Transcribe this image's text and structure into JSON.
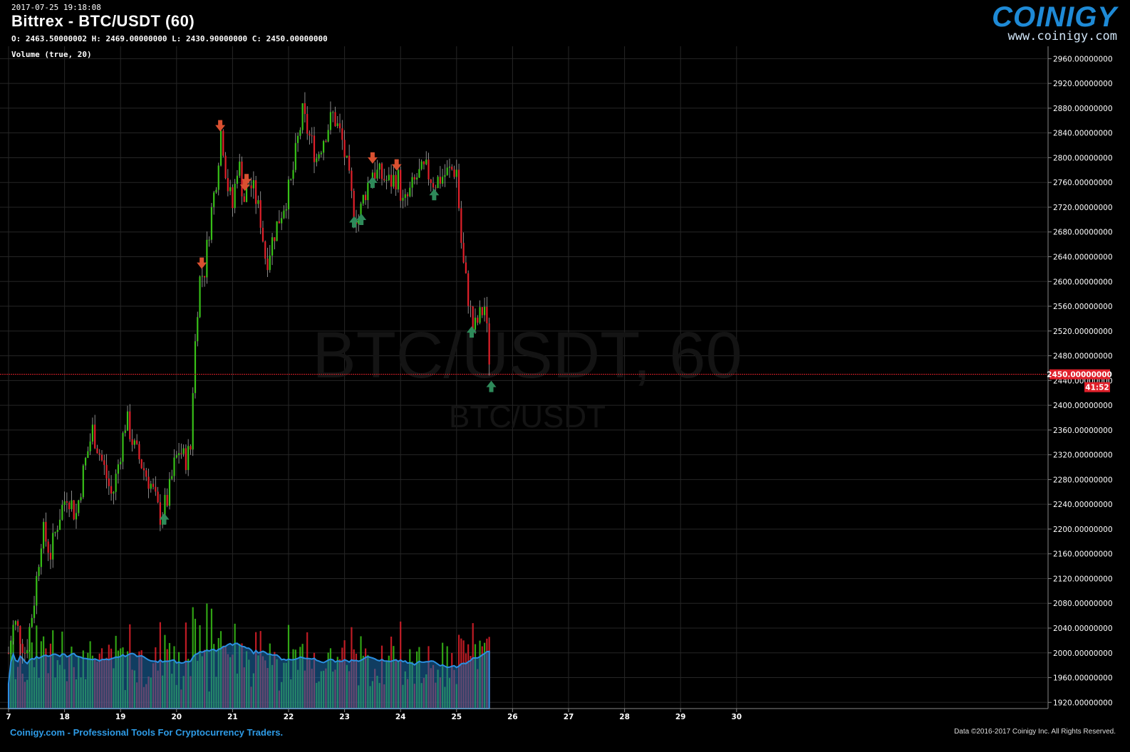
{
  "header": {
    "timestamp": "2017-07-25 19:18:08",
    "title": "Bittrex - BTC/USDT (60)",
    "ohlc": "O: 2463.50000002 H: 2469.00000000 L: 2430.90000000 C: 2450.00000000",
    "volume_label": "Volume (true, 20)"
  },
  "logo": {
    "word": "COINIGY",
    "url": "www.coinigy.com"
  },
  "watermark": {
    "main": "BTC/USDT, 60",
    "sub": "BTC/USDT"
  },
  "footer": {
    "left": "Coinigy.com - Professional Tools For Cryptocurrency Traders.",
    "right": "Data ©2016-2017 Coinigy Inc. All Rights Reserved."
  },
  "colors": {
    "up": "#38c018",
    "down": "#e0202a",
    "grid": "#262626",
    "background": "#000000",
    "price_line": "#e0202a",
    "volume_ma_fill": "#1e6fb0",
    "buy_marker": "#2e8a5a",
    "sell_marker": "#d95030"
  },
  "chart_data": {
    "type": "candlestick",
    "instrument": "BTC/USDT",
    "exchange": "Bittrex",
    "interval": "60",
    "grid": true,
    "y_axis_side": "right",
    "ylim": [
      1910,
      2980
    ],
    "y_ticks": [
      "2960.00000000",
      "2920.00000000",
      "2880.00000000",
      "2840.00000000",
      "2800.00000000",
      "2760.00000000",
      "2720.00000000",
      "2680.00000000",
      "2640.00000000",
      "2600.00000000",
      "2560.00000000",
      "2520.00000000",
      "2480.00000000",
      "2440.00000000",
      "2400.00000000",
      "2360.00000000",
      "2320.00000000",
      "2280.00000000",
      "2240.00000000",
      "2200.00000000",
      "2160.00000000",
      "2120.00000000",
      "2080.00000000",
      "2040.00000000",
      "2000.00000000",
      "1960.00000000",
      "1920.00000000"
    ],
    "x_ticks": [
      "7",
      "18",
      "19",
      "20",
      "21",
      "22",
      "23",
      "24",
      "25",
      "26",
      "27",
      "28",
      "29",
      "30"
    ],
    "last_price": "2450.00000000",
    "countdown": "41:52",
    "closes_anchor": [
      [
        17.0,
        2000
      ],
      [
        17.1,
        2050
      ],
      [
        17.2,
        2030
      ],
      [
        17.3,
        2000
      ],
      [
        17.45,
        2080
      ],
      [
        17.6,
        2200
      ],
      [
        17.75,
        2160
      ],
      [
        17.9,
        2220
      ],
      [
        18.05,
        2260
      ],
      [
        18.2,
        2220
      ],
      [
        18.35,
        2300
      ],
      [
        18.5,
        2360
      ],
      [
        18.7,
        2300
      ],
      [
        18.85,
        2250
      ],
      [
        18.95,
        2300
      ],
      [
        19.1,
        2380
      ],
      [
        19.25,
        2330
      ],
      [
        19.4,
        2300
      ],
      [
        19.55,
        2270
      ],
      [
        19.7,
        2220
      ],
      [
        19.85,
        2250
      ],
      [
        19.95,
        2300
      ],
      [
        20.05,
        2330
      ],
      [
        20.15,
        2310
      ],
      [
        20.25,
        2330
      ],
      [
        20.3,
        2450
      ],
      [
        20.4,
        2600
      ],
      [
        20.5,
        2620
      ],
      [
        20.6,
        2700
      ],
      [
        20.7,
        2760
      ],
      [
        20.8,
        2850
      ],
      [
        20.9,
        2760
      ],
      [
        21.0,
        2720
      ],
      [
        21.1,
        2800
      ],
      [
        21.2,
        2730
      ],
      [
        21.3,
        2760
      ],
      [
        21.4,
        2740
      ],
      [
        21.5,
        2700
      ],
      [
        21.6,
        2630
      ],
      [
        21.75,
        2680
      ],
      [
        21.9,
        2720
      ],
      [
        22.05,
        2760
      ],
      [
        22.15,
        2820
      ],
      [
        22.25,
        2870
      ],
      [
        22.35,
        2840
      ],
      [
        22.5,
        2800
      ],
      [
        22.65,
        2840
      ],
      [
        22.8,
        2870
      ],
      [
        22.95,
        2830
      ],
      [
        23.05,
        2780
      ],
      [
        23.15,
        2720
      ],
      [
        23.25,
        2700
      ],
      [
        23.35,
        2740
      ],
      [
        23.5,
        2780
      ],
      [
        23.65,
        2770
      ],
      [
        23.8,
        2760
      ],
      [
        23.95,
        2770
      ],
      [
        24.05,
        2720
      ],
      [
        24.15,
        2740
      ],
      [
        24.3,
        2770
      ],
      [
        24.45,
        2780
      ],
      [
        24.6,
        2760
      ],
      [
        24.75,
        2770
      ],
      [
        24.9,
        2780
      ],
      [
        25.0,
        2780
      ],
      [
        25.1,
        2640
      ],
      [
        25.2,
        2580
      ],
      [
        25.3,
        2520
      ],
      [
        25.4,
        2540
      ],
      [
        25.5,
        2560
      ],
      [
        25.6,
        2460
      ],
      [
        25.62,
        2450
      ]
    ],
    "volume_series": {
      "name": "Volume (true, 20)",
      "ma_period": 20
    },
    "buy_signals_x": [
      19.78,
      23.17,
      23.3,
      23.5,
      24.6,
      25.27,
      25.62
    ],
    "sell_signals_x": [
      20.78,
      20.45,
      21.22,
      21.25,
      23.5,
      23.93
    ]
  }
}
